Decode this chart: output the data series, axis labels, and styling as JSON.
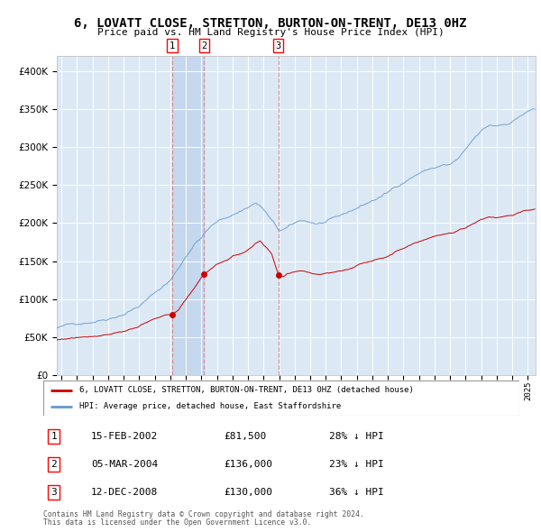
{
  "title": "6, LOVATT CLOSE, STRETTON, BURTON-ON-TRENT, DE13 0HZ",
  "subtitle": "Price paid vs. HM Land Registry's House Price Index (HPI)",
  "legend_red": "6, LOVATT CLOSE, STRETTON, BURTON-ON-TRENT, DE13 0HZ (detached house)",
  "legend_blue": "HPI: Average price, detached house, East Staffordshire",
  "footer1": "Contains HM Land Registry data © Crown copyright and database right 2024.",
  "footer2": "This data is licensed under the Open Government Licence v3.0.",
  "transactions": [
    {
      "num": 1,
      "date": "15-FEB-2002",
      "price": 81500,
      "pct": "28%",
      "dir": "↓"
    },
    {
      "num": 2,
      "date": "05-MAR-2004",
      "price": 136000,
      "pct": "23%",
      "dir": "↓"
    },
    {
      "num": 3,
      "date": "12-DEC-2008",
      "price": 130000,
      "pct": "36%",
      "dir": "↓"
    }
  ],
  "transaction_dates_decimal": [
    2002.12,
    2004.18,
    2008.95
  ],
  "background_color": "#dce9f5",
  "plot_bg": "#dce9f5",
  "grid_color": "#ffffff",
  "red_color": "#cc0000",
  "blue_color": "#6699cc",
  "span_color": "#c5d8ee",
  "ylim": [
    0,
    420000
  ],
  "yticks": [
    0,
    50000,
    100000,
    150000,
    200000,
    250000,
    300000,
    350000,
    400000
  ],
  "xlim_start": 1994.7,
  "xlim_end": 2025.5,
  "title_fontsize": 10.5,
  "subtitle_fontsize": 8.5
}
